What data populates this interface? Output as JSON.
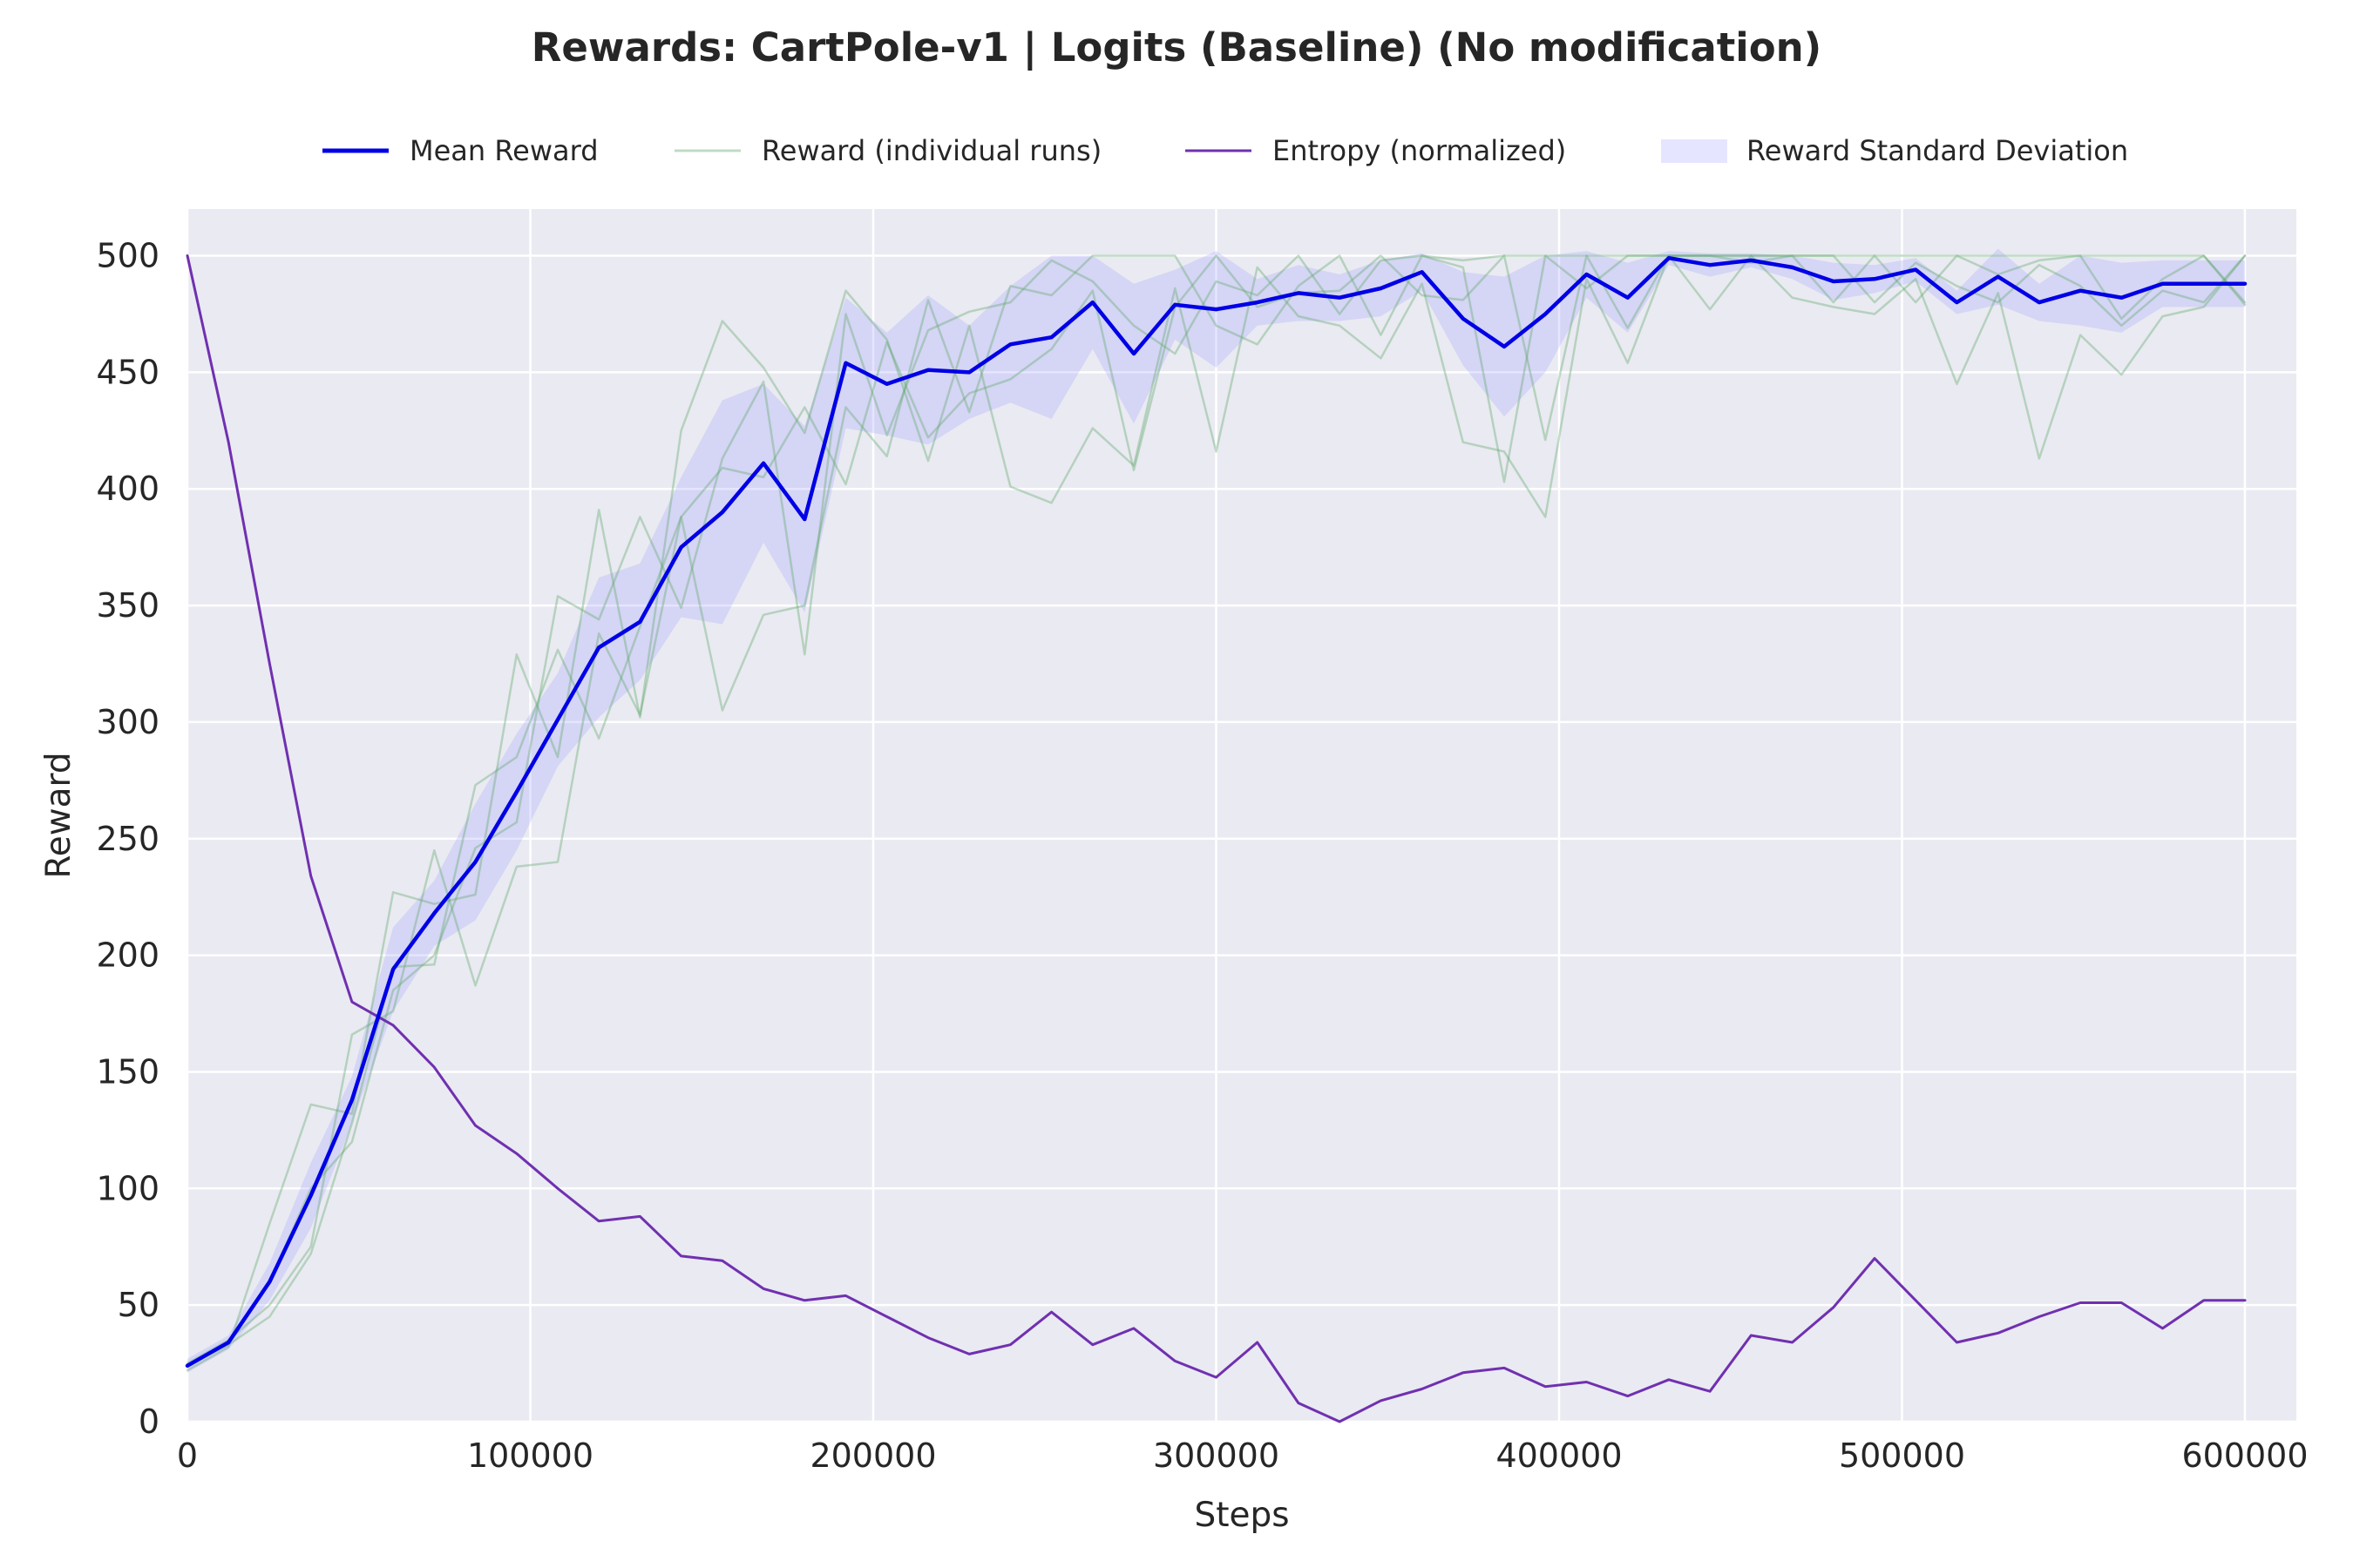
{
  "chart_data": {
    "type": "line",
    "title": "Rewards: CartPole-v1 | Logits (Baseline) (No modification)",
    "xlabel": "Steps",
    "ylabel": "Reward",
    "xlim": [
      0,
      615000
    ],
    "ylim": [
      0,
      520
    ],
    "xticks": [
      0,
      100000,
      200000,
      300000,
      400000,
      500000,
      600000
    ],
    "yticks": [
      0,
      50,
      100,
      150,
      200,
      250,
      300,
      350,
      400,
      450,
      500
    ],
    "grid": true,
    "legend_placement": "top-center",
    "x": [
      0,
      12000,
      24000,
      36000,
      48000,
      60000,
      72000,
      84000,
      96000,
      108000,
      120000,
      132000,
      144000,
      156000,
      168000,
      180000,
      192000,
      204000,
      216000,
      228000,
      240000,
      252000,
      264000,
      276000,
      288000,
      300000,
      312000,
      324000,
      336000,
      348000,
      360000,
      372000,
      384000,
      396000,
      408000,
      420000,
      432000,
      444000,
      456000,
      468000,
      480000,
      492000,
      504000,
      516000,
      528000,
      540000,
      552000,
      564000,
      576000,
      588000,
      600000
    ],
    "series": [
      {
        "name": "Mean Reward",
        "kind": "mean",
        "color": "#0000e6",
        "values": [
          24,
          34,
          60,
          97,
          138,
          194,
          218,
          240,
          270,
          301,
          332,
          343,
          375,
          390,
          411,
          387,
          454,
          445,
          451,
          450,
          462,
          465,
          480,
          458,
          479,
          477,
          480,
          484,
          482,
          486,
          493,
          473,
          461,
          475,
          492,
          482,
          499,
          496,
          498,
          495,
          489,
          490,
          494,
          480,
          491,
          480,
          485,
          482,
          488,
          488,
          488
        ],
        "std": [
          3,
          3,
          8,
          14,
          10,
          18,
          14,
          25,
          25,
          20,
          30,
          25,
          30,
          48,
          34,
          40,
          28,
          22,
          32,
          20,
          25,
          35,
          20,
          30,
          15,
          25,
          10,
          12,
          10,
          12,
          8,
          20,
          30,
          25,
          10,
          15,
          3,
          5,
          3,
          5,
          8,
          6,
          5,
          5,
          12,
          8,
          15,
          15,
          10,
          10,
          10
        ]
      },
      {
        "name": "Reward (individual runs)",
        "kind": "runs",
        "color": "#5fa86a",
        "runs": [
          [
            22,
            32,
            85,
            136,
            132,
            227,
            222,
            226,
            329,
            285,
            391,
            302,
            425,
            472,
            452,
            424,
            485,
            464,
            412,
            470,
            401,
            394,
            426,
            410,
            486,
            416,
            495,
            474,
            470,
            456,
            488,
            420,
            416,
            388,
            490,
            454,
            500,
            477,
            500,
            482,
            478,
            475,
            490,
            445,
            484,
            413,
            466,
            449,
            474,
            478,
            500
          ],
          [
            25,
            35,
            50,
            75,
            166,
            176,
            245,
            187,
            238,
            240,
            338,
            303,
            388,
            305,
            346,
            350,
            435,
            414,
            481,
            433,
            487,
            483,
            500,
            500,
            500,
            470,
            462,
            487,
            500,
            466,
            500,
            495,
            403,
            500,
            486,
            500,
            500,
            500,
            500,
            500,
            500,
            500,
            500,
            500,
            500,
            500,
            500,
            500,
            500,
            500,
            479
          ],
          [
            24,
            34,
            60,
            100,
            120,
            185,
            200,
            246,
            257,
            354,
            344,
            388,
            349,
            413,
            446,
            329,
            475,
            423,
            468,
            476,
            480,
            498,
            489,
            470,
            458,
            489,
            483,
            500,
            475,
            498,
            500,
            498,
            500,
            500,
            500,
            500,
            500,
            500,
            500,
            500,
            480,
            500,
            480,
            500,
            492,
            498,
            500,
            473,
            490,
            500,
            480
          ],
          [
            24,
            33,
            45,
            72,
            128,
            195,
            196,
            273,
            285,
            331,
            293,
            341,
            388,
            409,
            405,
            435,
            402,
            463,
            422,
            441,
            447,
            460,
            485,
            408,
            478,
            500,
            478,
            484,
            485,
            500,
            483,
            481,
            500,
            421,
            500,
            469,
            500,
            500,
            497,
            500,
            500,
            480,
            497,
            487,
            480,
            496,
            487,
            470,
            485,
            480,
            500
          ]
        ]
      },
      {
        "name": "Entropy (normalized)",
        "kind": "entropy",
        "color": "#7030b0",
        "values": [
          500,
          420,
          325,
          234,
          180,
          170,
          152,
          127,
          115,
          100,
          86,
          88,
          71,
          69,
          57,
          52,
          54,
          45,
          36,
          29,
          33,
          47,
          33,
          40,
          26,
          19,
          34,
          8,
          0,
          9,
          14,
          21,
          23,
          15,
          17,
          11,
          18,
          13,
          37,
          34,
          49,
          70,
          52,
          34,
          38,
          45,
          51,
          51,
          40,
          52,
          52
        ]
      }
    ],
    "legend": [
      {
        "label": "Mean Reward",
        "style": "line-thick",
        "color": "#0000e6"
      },
      {
        "label": "Reward (individual runs)",
        "style": "line-thin",
        "color": "#5fa86a"
      },
      {
        "label": "Entropy (normalized)",
        "style": "line",
        "color": "#7030b0"
      },
      {
        "label": "Reward Standard Deviation",
        "style": "band",
        "color": "#9999ff"
      }
    ]
  }
}
